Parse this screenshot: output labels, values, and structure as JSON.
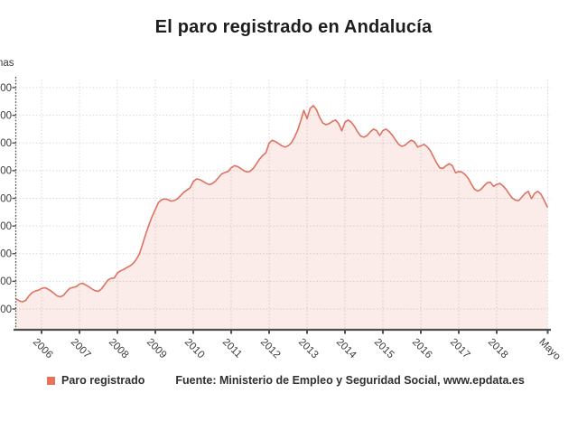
{
  "title": "El paro registrado en Andalucía",
  "legend": {
    "series_label": "Paro registrado",
    "swatch_color": "#e8735a"
  },
  "source": "Fuente: Ministerio de Empleo y Seguridad Social, www.epdata.es",
  "y_axis": {
    "unit_label_visible": "nas",
    "tick_labels_visible": [
      "00",
      "00",
      "00",
      "00",
      "00",
      "00",
      "00",
      "00",
      "00"
    ]
  },
  "x_axis": {
    "tick_labels": [
      "2006",
      "2007",
      "2008",
      "2009",
      "2010",
      "2011",
      "2012",
      "2013",
      "2014",
      "2015",
      "2016",
      "2017",
      "2018",
      "Mayo"
    ]
  },
  "colors": {
    "line": "#dd7261",
    "fill": "rgba(230,112,85,0.13)",
    "axis": "#4f4f4f",
    "grid": "#d8d8d8",
    "tick_text": "#3b3b3b",
    "title_text": "#1d1d1b",
    "swatch": "#e8735a"
  },
  "chart_data": {
    "type": "area",
    "title": "El paro registrado en Andalucía",
    "legend_position": "bottom-left",
    "grid": true,
    "series_name": "Paro registrado",
    "source": "Fuente: Ministerio de Empleo y Seguridad Social, www.epdata.es",
    "x_start": "2005-05",
    "x_end": "2019-05",
    "frequency": "monthly",
    "x_tick_labels": [
      "2006",
      "2007",
      "2008",
      "2009",
      "2010",
      "2011",
      "2012",
      "2013",
      "2014",
      "2015",
      "2016",
      "2017",
      "2018",
      "Mayo"
    ],
    "y_unit_fragment_visible": "nas",
    "y_tick_fragments_visible": [
      "00",
      "00",
      "00",
      "00",
      "00",
      "00",
      "00",
      "00",
      "00"
    ],
    "ylim_estimated_persons": [
      400000,
      1200000
    ],
    "ytick_step_estimated_persons": 100000,
    "peak_estimated": {
      "when": "2013",
      "value_thousands": 1135
    },
    "last_value_estimated": {
      "when": "2019-05",
      "value_thousands": 769
    },
    "values_thousands_estimated": [
      436,
      429,
      426,
      431,
      447,
      459,
      465,
      468,
      474,
      477,
      472,
      465,
      456,
      447,
      444,
      450,
      464,
      475,
      478,
      481,
      490,
      493,
      487,
      480,
      472,
      466,
      464,
      473,
      489,
      504,
      511,
      512,
      530,
      538,
      543,
      550,
      556,
      565,
      580,
      600,
      635,
      672,
      705,
      735,
      760,
      785,
      795,
      798,
      795,
      790,
      792,
      798,
      810,
      822,
      830,
      838,
      860,
      870,
      868,
      862,
      855,
      850,
      853,
      862,
      875,
      888,
      893,
      897,
      910,
      918,
      915,
      908,
      900,
      895,
      898,
      908,
      925,
      942,
      955,
      965,
      1000,
      1010,
      1005,
      998,
      990,
      985,
      990,
      1000,
      1020,
      1045,
      1080,
      1118,
      1088,
      1125,
      1135,
      1120,
      1092,
      1072,
      1066,
      1070,
      1078,
      1083,
      1070,
      1044,
      1075,
      1083,
      1075,
      1060,
      1040,
      1025,
      1021,
      1027,
      1040,
      1050,
      1045,
      1027,
      1045,
      1050,
      1041,
      1028,
      1011,
      995,
      988,
      992,
      1002,
      1010,
      1004,
      985,
      990,
      995,
      986,
      972,
      950,
      928,
      910,
      908,
      918,
      925,
      918,
      892,
      897,
      895,
      886,
      872,
      851,
      833,
      826,
      832,
      845,
      856,
      858,
      843,
      850,
      854,
      845,
      832,
      815,
      800,
      793,
      792,
      805,
      818,
      825,
      799,
      818,
      825,
      815,
      793,
      769
    ]
  }
}
